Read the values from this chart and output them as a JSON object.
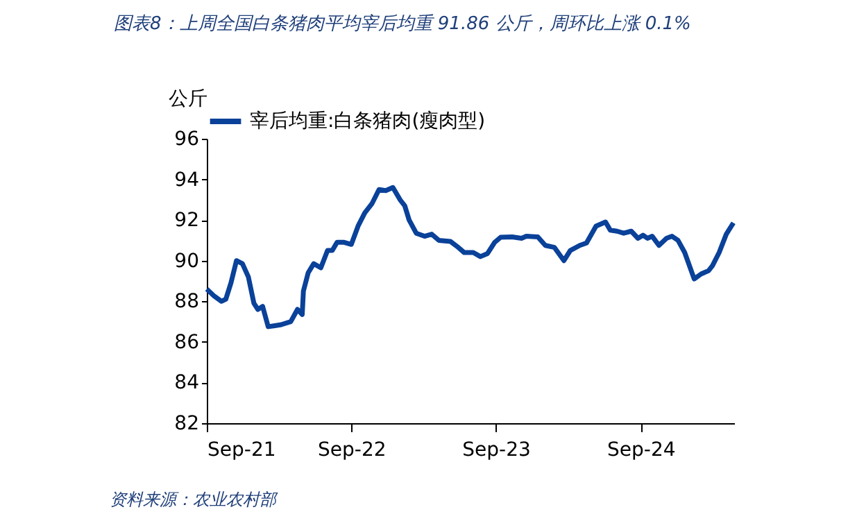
{
  "chart_data": {
    "type": "line",
    "title": "图表8：上周全国白条猪肉平均宰后均重 91.86 公斤，周环比上涨 0.1%",
    "ylabel": "公斤",
    "annotations": [
      "资料来源：农业农村部"
    ],
    "xlim": [
      "2021-09-01",
      "2025-04-25"
    ],
    "xticks": [
      {
        "value": "2021-09-01",
        "label": "Sep-21"
      },
      {
        "value": "2022-09-01",
        "label": "Sep-22"
      },
      {
        "value": "2023-09-01",
        "label": "Sep-23"
      },
      {
        "value": "2024-09-01",
        "label": "Sep-24"
      }
    ],
    "ylim": [
      82,
      96
    ],
    "yticks": [
      82,
      84,
      86,
      88,
      90,
      92,
      94,
      96
    ],
    "grid": false,
    "legend": "top",
    "marker": "none",
    "line_style": "solid",
    "series": [
      {
        "name": "宰后均重:白条猪肉(瘦肉型)",
        "color": "#0a4199",
        "x": [
          "2021-09-01",
          "2021-09-20",
          "2021-10-08",
          "2021-10-19",
          "2021-11-01",
          "2021-11-15",
          "2021-11-30",
          "2021-12-15",
          "2021-12-29",
          "2022-01-08",
          "2022-01-20",
          "2022-02-03",
          "2022-02-20",
          "2022-03-08",
          "2022-04-01",
          "2022-04-18",
          "2022-04-30",
          "2022-05-03",
          "2022-05-15",
          "2022-05-29",
          "2022-06-16",
          "2022-07-03",
          "2022-07-15",
          "2022-07-27",
          "2022-08-14",
          "2022-09-01",
          "2022-09-18",
          "2022-10-05",
          "2022-10-23",
          "2022-11-10",
          "2022-11-27",
          "2022-12-15",
          "2023-01-02",
          "2023-01-14",
          "2023-01-25",
          "2023-02-12",
          "2023-03-05",
          "2023-03-23",
          "2023-04-10",
          "2023-05-09",
          "2023-05-26",
          "2023-06-13",
          "2023-07-06",
          "2023-07-24",
          "2023-08-11",
          "2023-08-29",
          "2023-09-13",
          "2023-10-12",
          "2023-11-05",
          "2023-11-17",
          "2023-12-16",
          "2024-01-04",
          "2024-01-27",
          "2024-02-20",
          "2024-03-07",
          "2024-03-31",
          "2024-04-17",
          "2024-05-11",
          "2024-06-04",
          "2024-06-16",
          "2024-07-03",
          "2024-07-20",
          "2024-08-08",
          "2024-08-25",
          "2024-09-07",
          "2024-09-18",
          "2024-09-30",
          "2024-10-17",
          "2024-11-05",
          "2024-11-19",
          "2024-12-04",
          "2024-12-21",
          "2025-01-14",
          "2025-02-01",
          "2025-02-19",
          "2025-03-01",
          "2025-03-18",
          "2025-04-05",
          "2025-04-23"
        ],
        "values": [
          88.6,
          88.25,
          88.0,
          88.1,
          88.9,
          90.0,
          89.85,
          89.2,
          87.9,
          87.6,
          87.75,
          86.75,
          86.8,
          86.85,
          87.0,
          87.6,
          87.35,
          88.5,
          89.4,
          89.85,
          89.65,
          90.5,
          90.5,
          90.9,
          90.9,
          90.8,
          91.7,
          92.35,
          92.8,
          93.5,
          93.45,
          93.6,
          93.0,
          92.7,
          92.0,
          91.35,
          91.2,
          91.3,
          91.0,
          90.95,
          90.7,
          90.4,
          90.4,
          90.2,
          90.35,
          90.9,
          91.15,
          91.17,
          91.1,
          91.2,
          91.17,
          90.75,
          90.65,
          90.0,
          90.5,
          90.75,
          90.87,
          91.7,
          91.9,
          91.5,
          91.45,
          91.35,
          91.45,
          91.1,
          91.25,
          91.1,
          91.2,
          90.75,
          91.1,
          91.2,
          91.0,
          90.4,
          89.1,
          89.35,
          89.5,
          89.75,
          90.4,
          91.3,
          91.86
        ]
      }
    ]
  }
}
